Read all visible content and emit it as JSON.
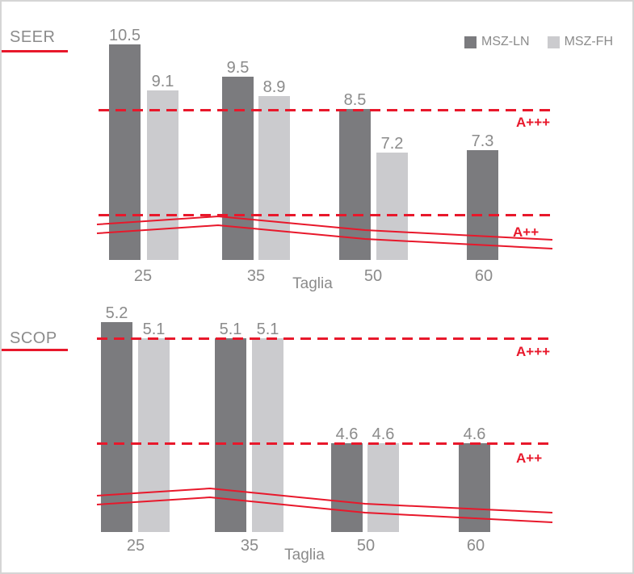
{
  "panel": {
    "background": "#ffffff",
    "border_color": "#d5d5d5"
  },
  "colors": {
    "msz_ln_bar": "#7b7b7e",
    "msz_fh_bar": "#cbcbce",
    "red_accent": "#e8182b",
    "gray_text": "#8b8b8b"
  },
  "legend": {
    "position": "top-right"
  },
  "chart_data": [
    {
      "type": "bar",
      "title": "SEER",
      "xlabel": "Taglia",
      "categories": [
        "25",
        "35",
        "50",
        "60"
      ],
      "series": [
        {
          "name": "MSZ-LN",
          "values": [
            10.5,
            9.5,
            8.5,
            7.3
          ]
        },
        {
          "name": "MSZ-FH",
          "values": [
            9.1,
            8.9,
            7.2,
            null
          ]
        }
      ],
      "thresholds": [
        {
          "label": "A+++"
        },
        {
          "label": "A++"
        }
      ],
      "red_trend_curves": 2,
      "grid": false,
      "legend_position": "top-right"
    },
    {
      "type": "bar",
      "title": "SCOP",
      "xlabel": "Taglia",
      "categories": [
        "25",
        "35",
        "50",
        "60"
      ],
      "series": [
        {
          "name": "MSZ-LN",
          "values": [
            5.2,
            5.1,
            4.6,
            4.6
          ]
        },
        {
          "name": "MSZ-FH",
          "values": [
            5.1,
            5.1,
            4.6,
            null
          ]
        }
      ],
      "thresholds": [
        {
          "label": "A+++"
        },
        {
          "label": "A++"
        }
      ],
      "red_trend_curves": 2,
      "grid": false
    }
  ]
}
